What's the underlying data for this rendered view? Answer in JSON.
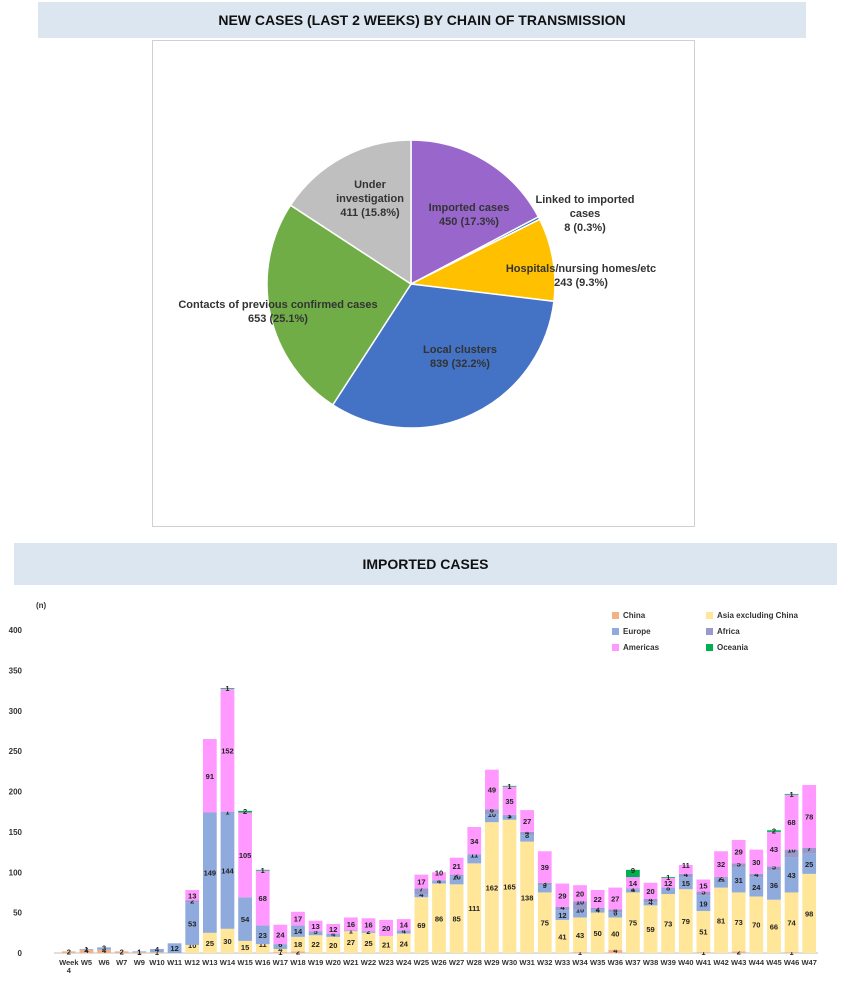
{
  "titles": {
    "pie": "NEW CASES (LAST 2 WEEKS) BY CHAIN OF TRANSMISSION",
    "bar": "IMPORTED CASES"
  },
  "chart_data": [
    {
      "type": "pie",
      "title": "NEW CASES (LAST 2 WEEKS) BY CHAIN OF TRANSMISSION",
      "start_angle_deg": 0,
      "direction": "clockwise",
      "slices": [
        {
          "label": "Imported cases",
          "value": 450,
          "pct": "17.3%",
          "display": "450 (17.3%)",
          "color": "#9966cc"
        },
        {
          "label": "Linked to imported cases",
          "value": 8,
          "pct": "0.3%",
          "display": "8 (0.3%)",
          "color": "#2e75b6"
        },
        {
          "label": "Hospitals/nursing homes/etc",
          "value": 243,
          "pct": "9.3%",
          "display": "243 (9.3%)",
          "color": "#ffc000"
        },
        {
          "label": "Local clusters",
          "value": 839,
          "pct": "32.2%",
          "display": "839 (32.2%)",
          "color": "#4472c4"
        },
        {
          "label": "Contacts of previous confirmed cases",
          "value": 653,
          "pct": "25.1%",
          "display": "653 (25.1%)",
          "color": "#70ad47"
        },
        {
          "label": "Under investigation",
          "value": 411,
          "pct": "15.8%",
          "display": "411 (15.8%)",
          "color": "#bfbfbf"
        }
      ]
    },
    {
      "type": "bar",
      "stacked": true,
      "title": "IMPORTED CASES",
      "ylabel": "(n)",
      "ylim": [
        0,
        400
      ],
      "yticks": [
        0,
        50,
        100,
        150,
        200,
        250,
        300,
        350,
        400
      ],
      "legend_position": "top-right",
      "categories": [
        "Week 4",
        "W5",
        "W6",
        "W7",
        "W9",
        "W10",
        "W11",
        "W12",
        "W13",
        "W14",
        "W15",
        "W16",
        "W17",
        "W18",
        "W19",
        "W20",
        "W21",
        "W22",
        "W23",
        "W24",
        "W25",
        "W26",
        "W27",
        "W28",
        "W29",
        "W30",
        "W31",
        "W32",
        "W33",
        "W34",
        "W35",
        "W36",
        "W37",
        "W38",
        "W39",
        "W40",
        "W41",
        "W42",
        "W43",
        "W44",
        "W45",
        "W46",
        "W47"
      ],
      "series": [
        {
          "name": "China",
          "color": "#f4b183",
          "values": [
            2,
            4,
            4,
            2,
            1,
            1,
            0,
            0,
            0,
            0,
            0,
            0,
            1,
            2,
            0,
            0,
            0,
            0,
            0,
            0,
            0,
            0,
            0,
            0,
            0,
            0,
            0,
            0,
            0,
            1,
            0,
            4,
            0,
            0,
            0,
            0,
            1,
            0,
            2,
            0,
            0,
            1,
            0
          ]
        },
        {
          "name": "Asia excluding China",
          "color": "#ffe699",
          "values": [
            0,
            0,
            0,
            0,
            0,
            0,
            0,
            10,
            25,
            30,
            15,
            11,
            4,
            18,
            22,
            20,
            27,
            25,
            21,
            24,
            69,
            86,
            85,
            111,
            162,
            165,
            138,
            75,
            41,
            43,
            50,
            40,
            75,
            59,
            73,
            79,
            51,
            81,
            73,
            70,
            66,
            74,
            98
          ]
        },
        {
          "name": "Europe",
          "color": "#8faadc",
          "values": [
            0,
            1,
            3,
            0,
            1,
            4,
            12,
            53,
            149,
            144,
            54,
            23,
            6,
            14,
            5,
            4,
            1,
            2,
            0,
            4,
            4,
            4,
            10,
            11,
            10,
            5,
            8,
            9,
            12,
            10,
            4,
            6,
            4,
            4,
            8,
            15,
            19,
            11,
            31,
            24,
            36,
            43,
            25
          ]
        },
        {
          "name": "Africa",
          "color": "#9999cc",
          "values": [
            0,
            0,
            0,
            0,
            0,
            0,
            0,
            2,
            0,
            1,
            0,
            0,
            0,
            0,
            0,
            0,
            0,
            0,
            0,
            0,
            7,
            0,
            2,
            0,
            6,
            1,
            4,
            3,
            4,
            10,
            2,
            4,
            1,
            4,
            0,
            4,
            5,
            2,
            5,
            4,
            5,
            10,
            7
          ]
        },
        {
          "name": "Americas",
          "color": "#ff99ff",
          "values": [
            0,
            0,
            0,
            0,
            0,
            0,
            0,
            13,
            91,
            152,
            105,
            68,
            24,
            17,
            13,
            12,
            16,
            16,
            20,
            14,
            17,
            10,
            21,
            34,
            49,
            35,
            27,
            39,
            29,
            20,
            22,
            27,
            14,
            20,
            12,
            11,
            15,
            32,
            29,
            30,
            43,
            68,
            78
          ]
        },
        {
          "name": "Oceania",
          "color": "#00b050",
          "values": [
            0,
            0,
            0,
            0,
            0,
            0,
            0,
            0,
            0,
            1,
            2,
            1,
            0,
            0,
            0,
            0,
            0,
            0,
            0,
            0,
            0,
            0,
            0,
            0,
            0,
            1,
            0,
            0,
            0,
            0,
            0,
            0,
            9,
            0,
            1,
            0,
            0,
            0,
            0,
            0,
            2,
            1,
            0
          ]
        }
      ]
    }
  ]
}
